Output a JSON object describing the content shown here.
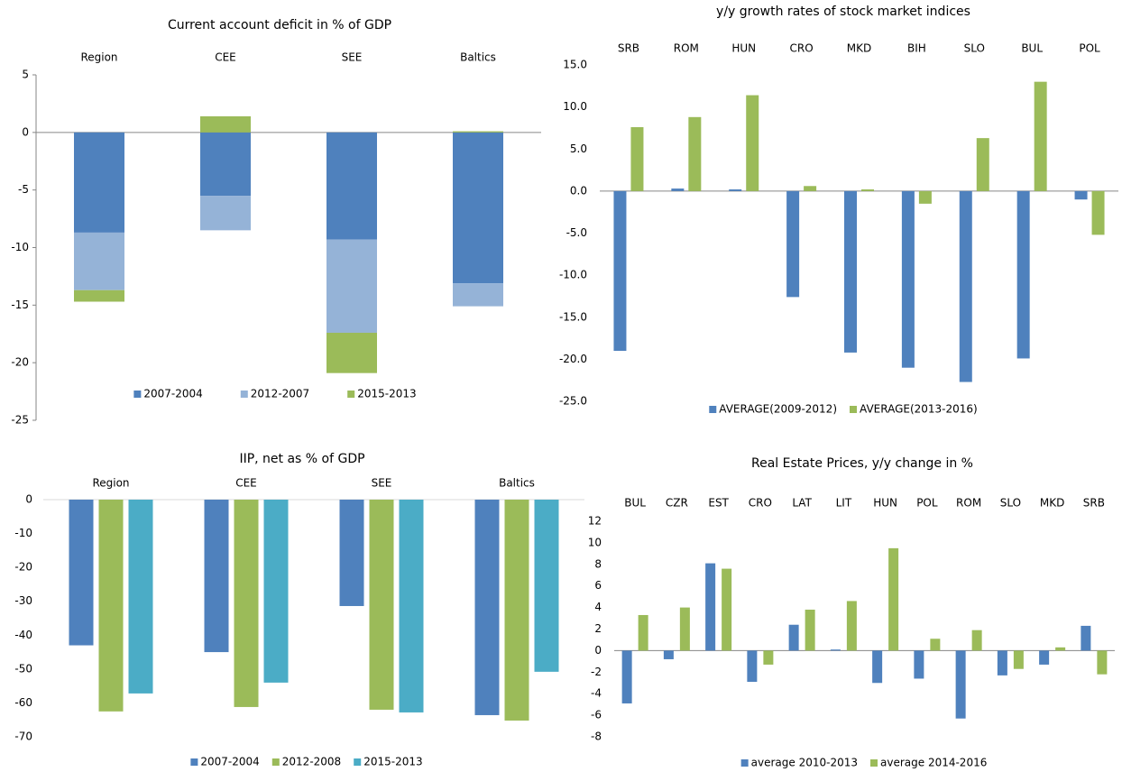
{
  "chart_data": [
    {
      "type": "bar",
      "stacked": true,
      "title": "Current account deficit in % of GDP",
      "categories": [
        "Region",
        "CEE",
        "SEE",
        "Baltics"
      ],
      "series": [
        {
          "name": "2007-2004",
          "color": "#4f81bd",
          "values": [
            -8.7,
            -5.5,
            -9.3,
            -13.1
          ]
        },
        {
          "name": "2012-2007",
          "color": "#95b3d7",
          "values": [
            -5,
            -3,
            -8.1,
            -2
          ]
        },
        {
          "name": "2015-2013",
          "color": "#9bbb59",
          "values": [
            -1,
            1.4,
            -3.5,
            0.1
          ]
        }
      ],
      "ylim": [
        -25,
        5
      ],
      "yticks": [
        -25,
        -20,
        -15,
        -10,
        -5,
        0,
        5
      ]
    },
    {
      "type": "bar",
      "title": "y/y growth rates of stock market indices",
      "categories": [
        "SRB",
        "ROM",
        "HUN",
        "CRO",
        "MKD",
        "BIH",
        "SLO",
        "BUL",
        "POL"
      ],
      "series": [
        {
          "name": "AVERAGE(2009-2012)",
          "color": "#4f81bd",
          "values": [
            -19,
            0.3,
            0.2,
            -12.6,
            -19.2,
            -21,
            -22.7,
            -19.9,
            -1
          ]
        },
        {
          "name": "AVERAGE(2013-2016)",
          "color": "#9bbb59",
          "values": [
            7.6,
            8.8,
            11.4,
            0.6,
            0.2,
            -1.5,
            6.3,
            13,
            -5.2
          ]
        }
      ],
      "ylim": [
        -25,
        15
      ],
      "yticks": [
        {
          "value": -25,
          "label": "-25.0"
        },
        {
          "value": -20,
          "label": "-20.0"
        },
        {
          "value": -15,
          "label": "-15.0"
        },
        {
          "value": -10,
          "label": "-10.0"
        },
        {
          "value": -5,
          "label": "-5.0"
        },
        {
          "value": 0,
          "label": "0.0"
        },
        {
          "value": 5,
          "label": "5.0"
        },
        {
          "value": 10,
          "label": "10.0"
        },
        {
          "value": 15,
          "label": "15.0"
        }
      ]
    },
    {
      "type": "bar",
      "title": "IIP, net as % of GDP",
      "categories": [
        "Region",
        "CEE",
        "SEE",
        "Baltics"
      ],
      "series": [
        {
          "name": "2007-2004",
          "color": "#4f81bd",
          "values": [
            -43,
            -45,
            -31.4,
            -63.6
          ]
        },
        {
          "name": "2012-2008",
          "color": "#9bbb59",
          "values": [
            -62.5,
            -61.2,
            -62,
            -65.2
          ]
        },
        {
          "name": "2015-2013",
          "color": "#4bacc6",
          "values": [
            -57.2,
            -54,
            -62.8,
            -50.8
          ]
        }
      ],
      "ylim": [
        -70,
        0
      ],
      "yticks": [
        -70,
        -60,
        -50,
        -40,
        -30,
        -20,
        -10,
        0
      ]
    },
    {
      "type": "bar",
      "title": "Real Estate Prices, y/y change in %",
      "categories": [
        "BUL",
        "CZR",
        "EST",
        "CRO",
        "LAT",
        "LIT",
        "HUN",
        "POL",
        "ROM",
        "SLO",
        "MKD",
        "SRB"
      ],
      "series": [
        {
          "name": "average 2010-2013",
          "color": "#4f81bd",
          "values": [
            -4.9,
            -0.8,
            8.1,
            -2.9,
            2.4,
            0.1,
            -3,
            -2.6,
            -6.3,
            -2.3,
            -1.3,
            2.3
          ]
        },
        {
          "name": "average 2014-2016",
          "color": "#9bbb59",
          "values": [
            3.3,
            4,
            7.6,
            -1.3,
            3.8,
            4.6,
            9.5,
            1.1,
            1.9,
            -1.7,
            0.3,
            -2.2
          ]
        }
      ],
      "ylim": [
        -8,
        12
      ],
      "yticks": [
        -8,
        -6,
        -4,
        -2,
        0,
        2,
        4,
        6,
        8,
        10,
        12
      ]
    }
  ]
}
